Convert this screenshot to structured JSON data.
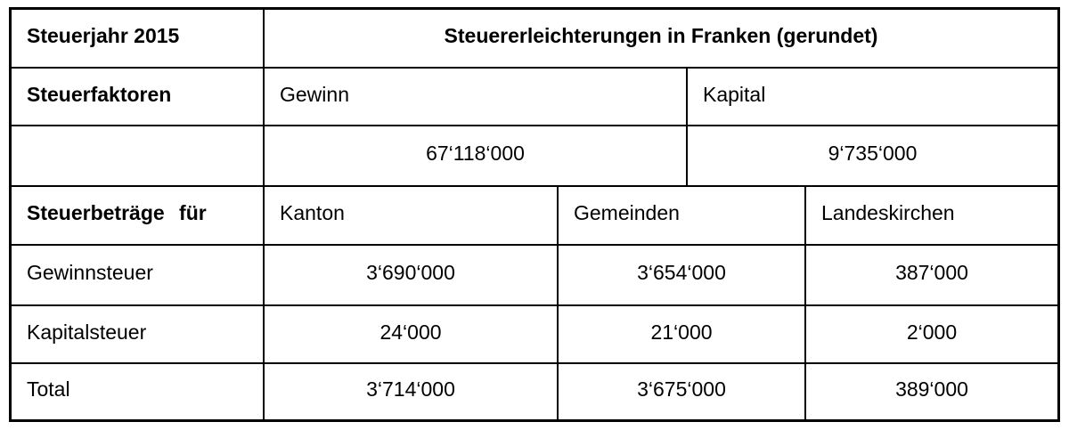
{
  "page": {
    "background_color": "#ffffff",
    "text_color": "#000000",
    "border_color": "#000000"
  },
  "table": {
    "header": {
      "year_label": "Steuerjahr 2015",
      "title": "Steuererleichterungen in Franken (gerundet)"
    },
    "factors": {
      "row_label": "Steuerfaktoren",
      "columns": [
        "Gewinn",
        "Kapital"
      ],
      "values": [
        "67‘118‘000",
        "9‘735‘000"
      ]
    },
    "amounts": {
      "row_label": "Steuerbeträge für",
      "columns": [
        "Kanton",
        "Gemeinden",
        "Landeskirchen"
      ],
      "rows": [
        {
          "label": "Gewinnsteuer",
          "values": [
            "3‘690‘000",
            "3‘654‘000",
            "387‘000"
          ]
        },
        {
          "label": "Kapitalsteuer",
          "values": [
            "24‘000",
            "21‘000",
            "2‘000"
          ]
        },
        {
          "label": "Total",
          "values": [
            "3‘714‘000",
            "3‘675‘000",
            "389‘000"
          ]
        }
      ]
    }
  }
}
